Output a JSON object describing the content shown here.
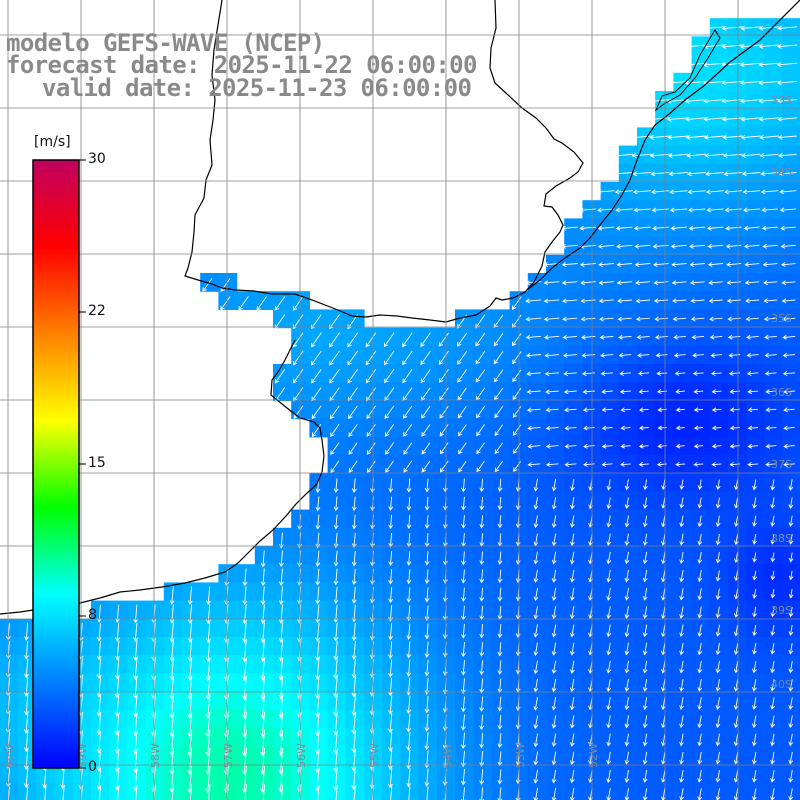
{
  "title": {
    "model": "modelo GEFS-WAVE (NCEP)",
    "forecast": "forecast date: 2025-11-22 06:00:00",
    "valid": "valid date: 2025-11-23 06:00:00"
  },
  "colorbar": {
    "unit": "[m/s]",
    "min": 0,
    "max": 30,
    "tick_labels": [
      "30",
      "22",
      "15",
      "8",
      "0"
    ],
    "colors": [
      "#0000ff",
      "#0080ff",
      "#00ffff",
      "#00ff00",
      "#ffff00",
      "#ff8000",
      "#ff0000",
      "#c00060"
    ]
  },
  "grid": {
    "lat_labels": [
      "33S",
      "34S",
      "35S",
      "36S",
      "37S",
      "38S",
      "39S",
      "40S"
    ],
    "lon_labels": [
      "60W",
      "59W",
      "58W",
      "57W",
      "56W",
      "55W",
      "54W",
      "53W",
      "52W"
    ]
  },
  "map": {
    "land_color": "#ffffff",
    "coast_color": "#000000",
    "grid_color": "#808080",
    "arrow_color": "#ffffff"
  }
}
